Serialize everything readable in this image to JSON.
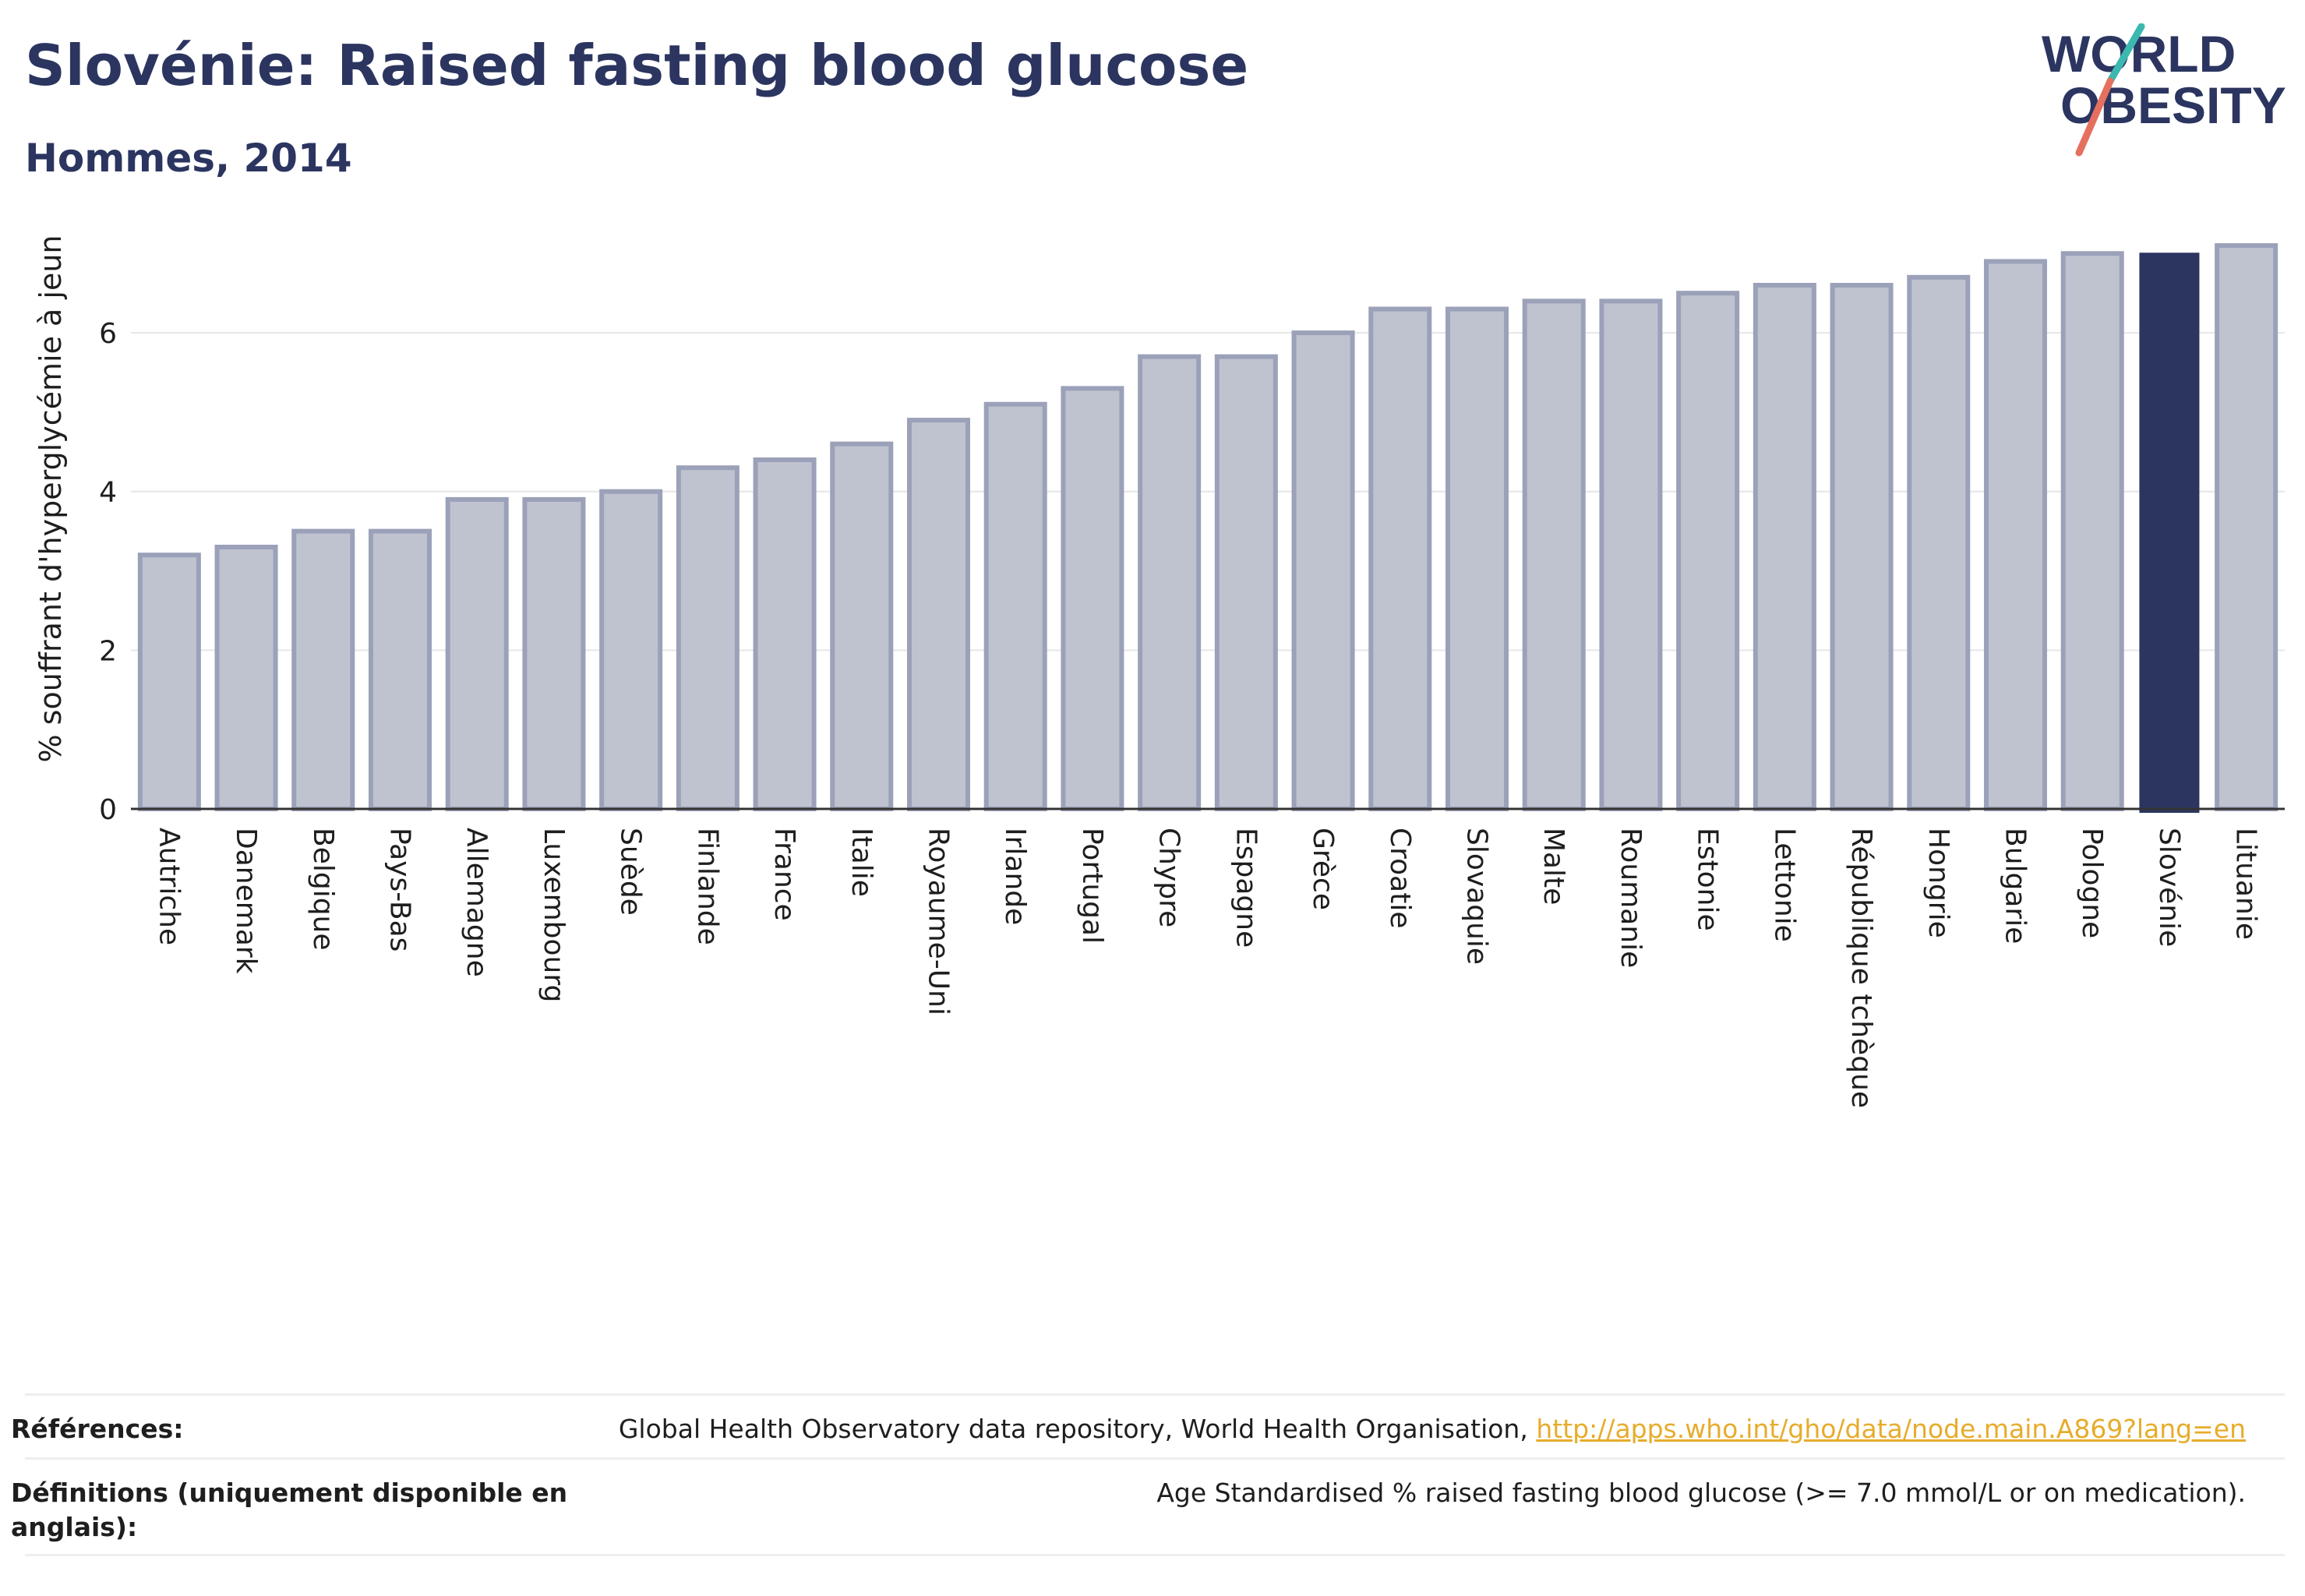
{
  "header": {
    "title": "Slovénie: Raised fasting blood glucose",
    "subtitle": "Hommes, 2014"
  },
  "logo": {
    "line1": "WORLD",
    "line2": "OBESITY",
    "icon": "world-obesity-logo"
  },
  "colors": {
    "bar": "#bfc3d0",
    "bar_border": "#9ba1b8",
    "highlight": "#2b3560",
    "link": "#e7ac2c",
    "grid": "#e6e6e6"
  },
  "chart_data": {
    "type": "bar",
    "ylabel": "% souffrant d'hyperglycémie à jeun",
    "xlabel": "",
    "ylim": [
      0,
      7.15
    ],
    "yticks": [
      "0",
      "2",
      "4",
      "6"
    ],
    "grid": true,
    "highlight": "Slovénie",
    "categories": [
      "Autriche",
      "Danemark",
      "Belgique",
      "Pays-Bas",
      "Allemagne",
      "Luxembourg",
      "Suède",
      "Finlande",
      "France",
      "Italie",
      "Royaume-Uni",
      "Irlande",
      "Portugal",
      "Chypre",
      "Espagne",
      "Grèce",
      "Croatie",
      "Slovaquie",
      "Malte",
      "Roumanie",
      "Estonie",
      "Lettonie",
      "République tchèque",
      "Hongrie",
      "Bulgarie",
      "Pologne",
      "Slovénie",
      "Lituanie"
    ],
    "values": [
      3.2,
      3.3,
      3.5,
      3.5,
      3.9,
      3.9,
      4.0,
      4.3,
      4.4,
      4.6,
      4.9,
      5.1,
      5.3,
      5.7,
      5.7,
      6.0,
      6.3,
      6.3,
      6.4,
      6.4,
      6.5,
      6.6,
      6.6,
      6.7,
      6.9,
      7.0,
      7.0,
      7.1
    ]
  },
  "footer": {
    "references_label": "Références:",
    "references_text": "Global Health Observatory data repository, World Health Organisation,",
    "references_link": "http://apps.who.int/gho/data/node.main.A869?lang=en",
    "definitions_label": "Définitions (uniquement disponible en anglais):",
    "definitions_text": "Age Standardised % raised fasting blood glucose (>= 7.0 mmol/L or on medication)."
  }
}
